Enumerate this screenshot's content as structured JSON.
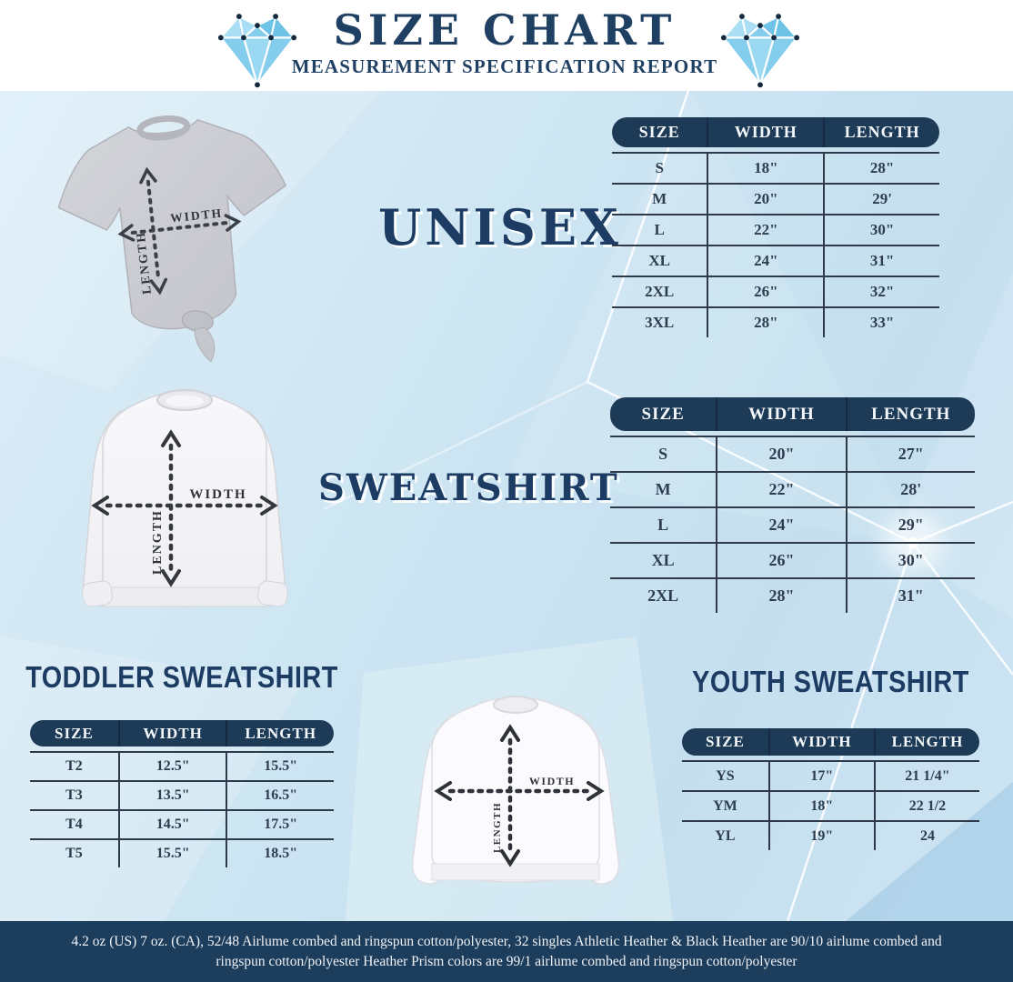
{
  "colors": {
    "navy": "#1d3a57",
    "title_navy": "#1f4063",
    "table_line": "#2e3a4a",
    "light_blue_bg": "#cfe6f3",
    "diamond_blue": "#85cdec",
    "footer_bg": "#1d3d5c"
  },
  "header": {
    "title": "SIZE CHART",
    "subtitle": "MEASUREMENT SPECIFICATION REPORT"
  },
  "diagram": {
    "width_label": "WIDTH",
    "length_label": "LENGTH"
  },
  "sections": {
    "unisex": {
      "label": "UNISEX",
      "table": {
        "columns": [
          "SIZE",
          "WIDTH",
          "LENGTH"
        ],
        "rows": [
          [
            "S",
            "18\"",
            "28\""
          ],
          [
            "M",
            "20\"",
            "29'"
          ],
          [
            "L",
            "22\"",
            "30\""
          ],
          [
            "XL",
            "24\"",
            "31\""
          ],
          [
            "2XL",
            "26\"",
            "32\""
          ],
          [
            "3XL",
            "28\"",
            "33\""
          ]
        ]
      }
    },
    "sweatshirt": {
      "label": "SWEATSHIRT",
      "table": {
        "columns": [
          "SIZE",
          "WIDTH",
          "LENGTH"
        ],
        "rows": [
          [
            "S",
            "20\"",
            "27\""
          ],
          [
            "M",
            "22\"",
            "28'"
          ],
          [
            "L",
            "24\"",
            "29\""
          ],
          [
            "XL",
            "26\"",
            "30\""
          ],
          [
            "2XL",
            "28\"",
            "31\""
          ]
        ]
      }
    },
    "toddler": {
      "label": "TODDLER SWEATSHIRT",
      "table": {
        "columns": [
          "SIZE",
          "WIDTH",
          "LENGTH"
        ],
        "rows": [
          [
            "T2",
            "12.5\"",
            "15.5\""
          ],
          [
            "T3",
            "13.5\"",
            "16.5\""
          ],
          [
            "T4",
            "14.5\"",
            "17.5\""
          ],
          [
            "T5",
            "15.5\"",
            "18.5\""
          ]
        ]
      }
    },
    "youth": {
      "label": "YOUTH SWEATSHIRT",
      "table": {
        "columns": [
          "SIZE",
          "WIDTH",
          "LENGTH"
        ],
        "rows": [
          [
            "YS",
            "17\"",
            "21 1/4\""
          ],
          [
            "YM",
            "18\"",
            "22 1/2"
          ],
          [
            "YL",
            "19\"",
            "24"
          ]
        ]
      }
    }
  },
  "footer": {
    "lines": [
      "4.2 oz (US) 7 oz. (CA), 52/48 Airlume combed and ringspun cotton/polyester, 32 singles Athletic Heather & Black Heather are 90/10 airlume combed and",
      "ringspun cotton/polyester Heather Prism colors are 99/1 airlume combed and ringspun cotton/polyester"
    ]
  }
}
